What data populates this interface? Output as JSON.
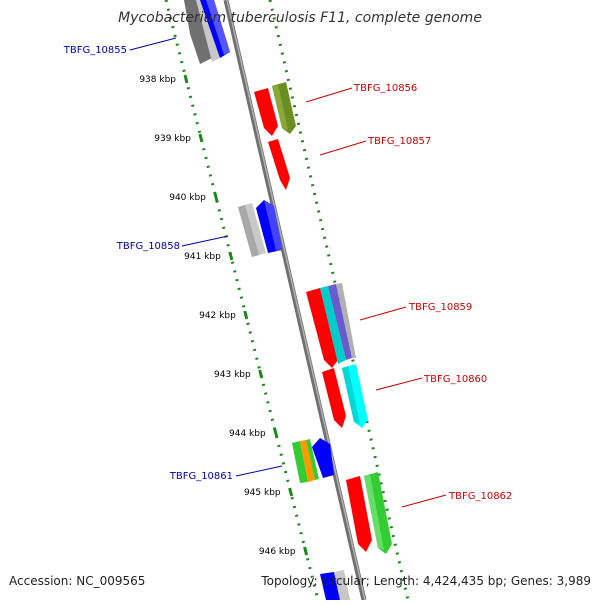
{
  "title": "Mycobacterium tuberculosis F11, complete genome",
  "footer": {
    "accession": "Accession: NC_009565",
    "summary": "Topology: circular; Length: 4,424,435 bp; Genes: 3,989"
  },
  "ticks": [
    "938 kbp",
    "939 kbp",
    "940 kbp",
    "941 kbp",
    "942 kbp",
    "943 kbp",
    "944 kbp",
    "945 kbp",
    "946 kbp"
  ],
  "gene_labels": {
    "TBFG_10855": "TBFG_10855",
    "TBFG_10856": "TBFG_10856",
    "TBFG_10857": "TBFG_10857",
    "TBFG_10858": "TBFG_10858",
    "TBFG_10859": "TBFG_10859",
    "TBFG_10860": "TBFG_10860",
    "TBFG_10861": "TBFG_10861",
    "TBFG_10862": "TBFG_10862"
  },
  "colors": {
    "backbone": "#808080",
    "dotted_track": "#1a8a1a",
    "reverse_label": "#0000aa",
    "forward_label": "#cc0000",
    "red": "#ff0000",
    "blue": "#0000ff",
    "gray": "#a0a0a0",
    "olive": "#6b8e23",
    "cyan": "#00ffff",
    "green": "#33cc33",
    "orange": "#ff9900"
  }
}
